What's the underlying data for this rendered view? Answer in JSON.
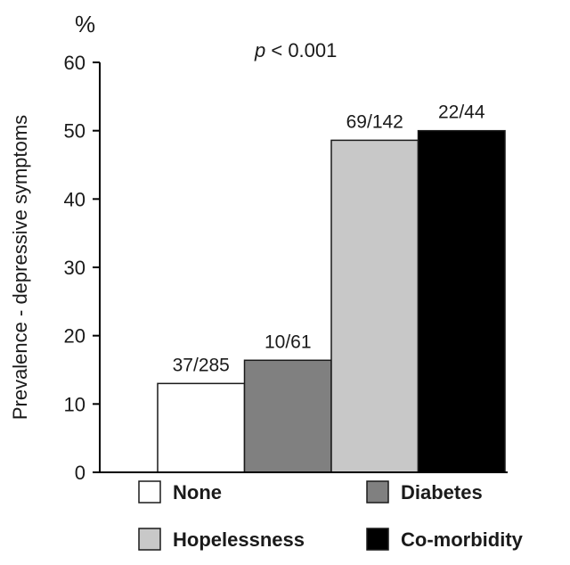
{
  "chart_data": {
    "type": "bar",
    "title": "",
    "unit_label": "%",
    "annotation": {
      "p_label": "p",
      "p_value": " < 0.001"
    },
    "ylabel": "Prevalence - depressive symptoms",
    "xlabel": "",
    "ylim": [
      0,
      60
    ],
    "yticks": [
      "0",
      "10",
      "20",
      "30",
      "40",
      "50",
      "60"
    ],
    "grid": false,
    "categories": [
      "None",
      "Diabetes",
      "Hopelessness",
      "Co-morbidity"
    ],
    "values": [
      13,
      16.4,
      48.6,
      50
    ],
    "data_labels": [
      "37/285",
      "10/61",
      "69/142",
      "22/44"
    ],
    "colors": [
      "#ffffff",
      "#808080",
      "#c8c8c8",
      "#000000"
    ],
    "legend": {
      "placement": "bottom",
      "entries": [
        {
          "label": "None",
          "color": "#ffffff"
        },
        {
          "label": "Diabetes",
          "color": "#808080"
        },
        {
          "label": "Hopelessness",
          "color": "#c8c8c8"
        },
        {
          "label": "Co-morbidity",
          "color": "#000000"
        }
      ]
    }
  }
}
